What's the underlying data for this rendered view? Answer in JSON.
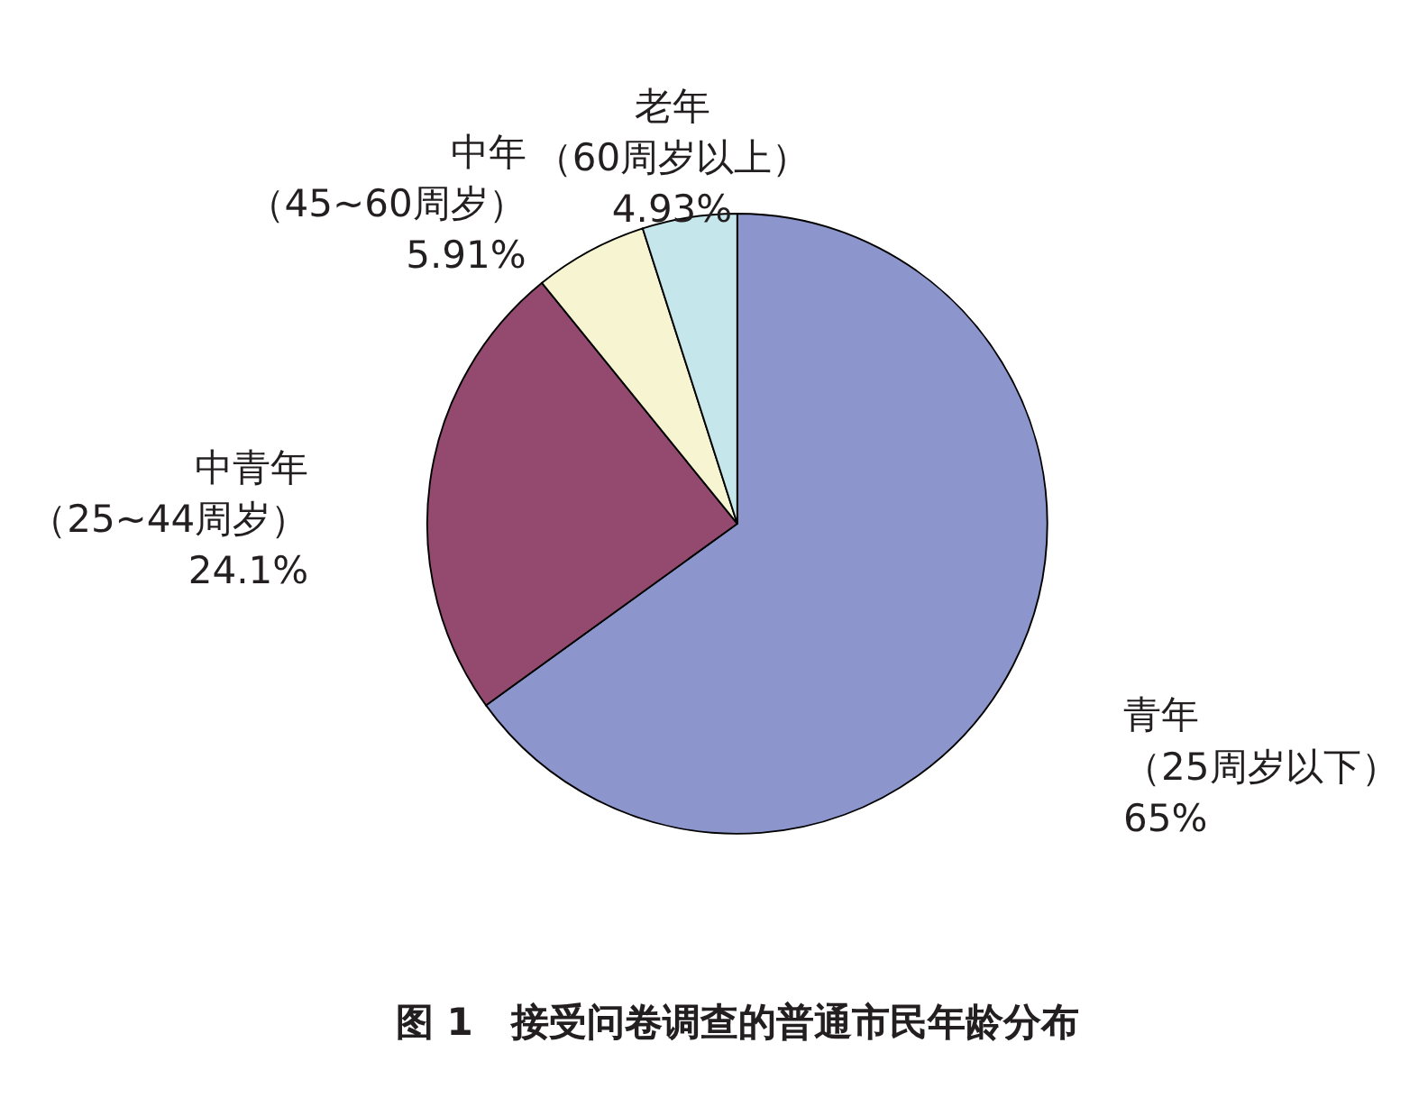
{
  "chart_data": {
    "type": "pie",
    "title": "图 1　接受问卷调查的普通市民年龄分布",
    "categories": [
      "青年（25周岁以下）",
      "中青年（25~44周岁）",
      "中年（45~60周岁）",
      "老年（60周岁以上）"
    ],
    "values": [
      65,
      24.1,
      5.91,
      4.93
    ],
    "value_labels": [
      "65%",
      "24.1%",
      "5.91%",
      "4.93%"
    ],
    "colors": [
      "#8c96cc",
      "#934a6e",
      "#f7f4d2",
      "#c5e6ea"
    ],
    "legend": false
  }
}
